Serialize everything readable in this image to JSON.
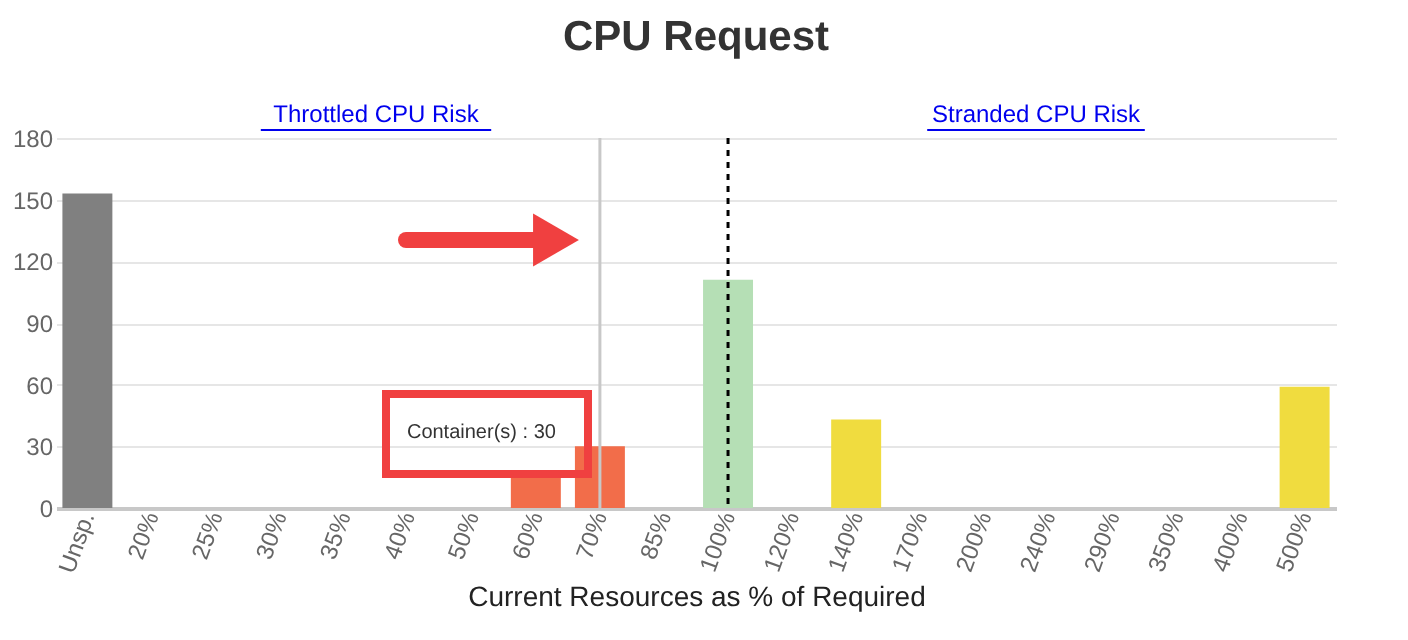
{
  "chart_data": {
    "type": "bar",
    "title": "CPU Request",
    "xlabel": "Current Resources as % of Required",
    "categories": [
      "Unsp.",
      "20%",
      "25%",
      "30%",
      "35%",
      "40%",
      "50%",
      "60%",
      "70%",
      "85%",
      "100%",
      "120%",
      "140%",
      "170%",
      "200%",
      "240%",
      "290%",
      "350%",
      "400%",
      "500%"
    ],
    "values": [
      153,
      0,
      0,
      0,
      0,
      0,
      0,
      18,
      30,
      0,
      111,
      0,
      43,
      0,
      0,
      0,
      0,
      0,
      0,
      59
    ],
    "colors": [
      "#808080",
      "#808080",
      "#808080",
      "#808080",
      "#808080",
      "#f26d4a",
      "#f26d4a",
      "#f26d4a",
      "#f26d4a",
      "#f26d4a",
      "#b5dfb5",
      "#f0dc3f",
      "#f0dc3f",
      "#f0dc3f",
      "#f0dc3f",
      "#f0dc3f",
      "#f0dc3f",
      "#f0dc3f",
      "#f0dc3f",
      "#f0dc3f"
    ],
    "ylim": [
      0,
      180
    ],
    "yticks": [
      0,
      30,
      60,
      90,
      120,
      150,
      180
    ],
    "grid": "y",
    "ref_lines": [
      {
        "axis": "x",
        "value": "70%",
        "color": "#c8c8c8",
        "line_style": "solid"
      },
      {
        "axis": "x",
        "value": "100%",
        "color": "#000000",
        "line_style": "dashed"
      }
    ],
    "annotations": [
      "Throttled CPU Risk",
      "Stranded CPU Risk",
      {
        "text": "Container(s)  :  30",
        "x": "70%",
        "y": 30
      }
    ]
  }
}
